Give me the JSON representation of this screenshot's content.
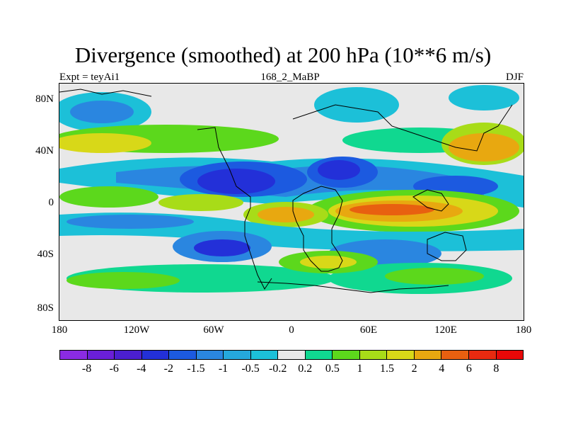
{
  "title": "Divergence (smoothed) at 200 hPa (10**6 m/s)",
  "subtitle_left": "Expt = teyAi1",
  "subtitle_center": "168_2_MaBP",
  "subtitle_right": "DJF",
  "y_ticks": [
    "80N",
    "40N",
    "0",
    "40S",
    "80S"
  ],
  "x_ticks": [
    "180",
    "120W",
    "60W",
    "0",
    "60E",
    "120E",
    "180"
  ],
  "colorbar": {
    "labels": [
      "-8",
      "-6",
      "-4",
      "-2",
      "-1.5",
      "-1",
      "-0.5",
      "-0.2",
      "0.2",
      "0.5",
      "1",
      "1.5",
      "2",
      "4",
      "6",
      "8"
    ],
    "colors": [
      "#8a2be2",
      "#6a1fd8",
      "#4b1fd0",
      "#2330d8",
      "#1c5ae0",
      "#2a86e0",
      "#25a8dc",
      "#1cc0d8",
      "#e8e8e8",
      "#10d890",
      "#5cd81c",
      "#a8dc18",
      "#d8d818",
      "#e8a810",
      "#e86010",
      "#e82a10",
      "#e80808"
    ]
  },
  "colors": {
    "neutral": "#e8e8e8",
    "lightblue": "#1cc0d8",
    "midblue": "#2a86e0",
    "blue": "#1c5ae0",
    "darkblue": "#2330d8",
    "teal": "#10d890",
    "green": "#5cd81c",
    "yellowgreen": "#a8dc18",
    "yellow": "#d8d818",
    "orange": "#e8a810",
    "red": "#e86010"
  }
}
